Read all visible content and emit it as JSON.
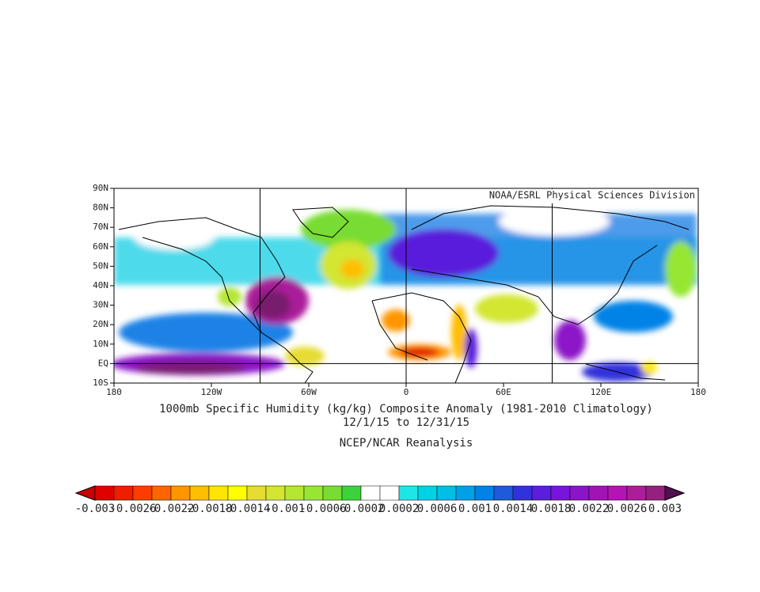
{
  "map": {
    "credit": "NOAA/ESRL Physical Sciences Division",
    "lat_labels": [
      "90N",
      "80N",
      "70N",
      "60N",
      "50N",
      "40N",
      "30N",
      "20N",
      "10N",
      "EQ",
      "10S"
    ],
    "lon_labels": [
      "180",
      "120W",
      "60W",
      "0",
      "60E",
      "120E",
      "180"
    ],
    "title": "1000mb Specific Humidity (kg/kg) Composite Anomaly (1981-2010 Climatology)",
    "dates": "12/1/15  to 12/31/15",
    "source": "NCEP/NCAR Reanalysis"
  },
  "colorbar": {
    "colors": [
      "#c80000",
      "#e00000",
      "#f01e00",
      "#ff3c00",
      "#ff6400",
      "#ff9600",
      "#ffbe00",
      "#ffe600",
      "#ffff00",
      "#e6dc32",
      "#d2e632",
      "#b4e632",
      "#96e632",
      "#78dc32",
      "#3cd23c",
      "#ffffff",
      "#ffffff",
      "#1ee6e6",
      "#00d2e6",
      "#00bee6",
      "#00a0e6",
      "#0082e6",
      "#1e5adc",
      "#3232dc",
      "#5a1edc",
      "#7814dc",
      "#8c14c8",
      "#a014b4",
      "#b414b4",
      "#aa1e9a",
      "#962080",
      "#500f50"
    ],
    "labels": [
      {
        "value": -0.003,
        "label": "-0.003"
      },
      {
        "value": -0.0026,
        "label": "-0.0026"
      },
      {
        "value": -0.0022,
        "label": "-0.0022"
      },
      {
        "value": -0.0018,
        "label": "-0.0018"
      },
      {
        "value": -0.0014,
        "label": "-0.0014"
      },
      {
        "value": -0.001,
        "label": "-0.001"
      },
      {
        "value": -0.0006,
        "label": "-0.0006"
      },
      {
        "value": -0.0002,
        "label": "-0.0002"
      },
      0.0002,
      0.0006,
      0.001,
      0.0014,
      0.0018,
      0.0022,
      0.0026,
      0.003
    ]
  }
}
